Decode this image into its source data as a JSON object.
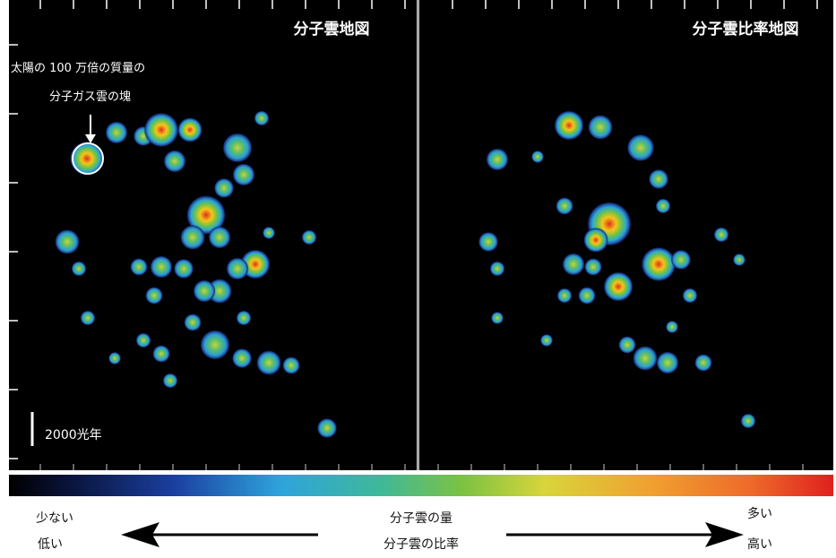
{
  "panels": {
    "left_title": "分子雲地図",
    "right_title": "分子雲比率地図"
  },
  "annotation": {
    "line1": "太陽の 100 万倍の質量の",
    "line2": "分子ガス雲の塊"
  },
  "scale_bar": "2000光年",
  "legend": {
    "low_amount": "少ない",
    "low_ratio": "低い",
    "center_amount": "分子雲の量",
    "center_ratio": "分子雲の比率",
    "high_amount": "多い",
    "high_ratio": "高い"
  }
}
